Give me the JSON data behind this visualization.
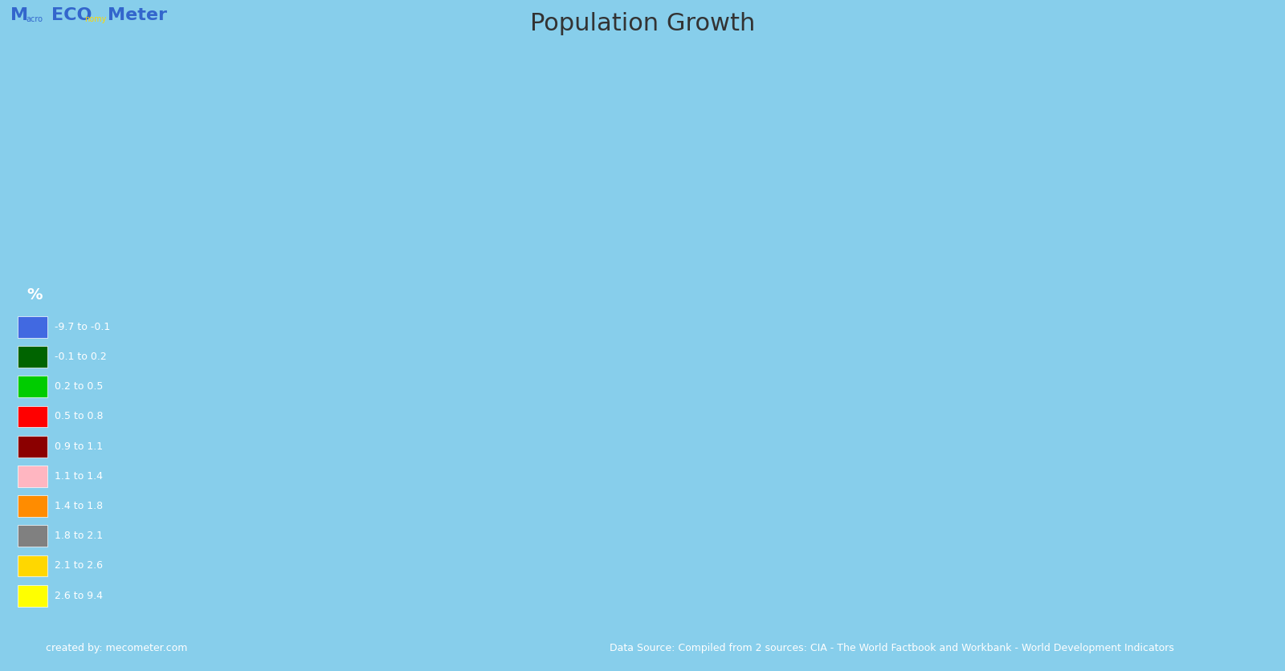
{
  "title": "Population Growth",
  "title_fontsize": 22,
  "title_color": "#333333",
  "background_color": "#87CEEB",
  "legend_bg_color": "#3A82C4",
  "footer_bg_color": "#3A82C4",
  "footer_left": "created by: mecometer.com",
  "footer_right": "Data Source: Compiled from 2 sources: CIA - The World Factbook and Workbank - World Development Indicators",
  "percent_label": "%",
  "legend_entries": [
    {
      "range": "-9.7 to -0.1",
      "color": "#4169E1"
    },
    {
      "range": "-0.1 to 0.2",
      "color": "#006400"
    },
    {
      "range": "0.2 to 0.5",
      "color": "#00CC00"
    },
    {
      "range": "0.5 to 0.8",
      "color": "#FF0000"
    },
    {
      "range": "0.9 to 1.1",
      "color": "#8B0000"
    },
    {
      "range": "1.1 to 1.4",
      "color": "#FFB6C1"
    },
    {
      "range": "1.4 to 1.8",
      "color": "#FF8C00"
    },
    {
      "range": "1.8 to 2.1",
      "color": "#808080"
    },
    {
      "range": "2.1 to 2.6",
      "color": "#FFD700"
    },
    {
      "range": "2.6 to 9.4",
      "color": "#FFFF00"
    }
  ],
  "name_to_color": {
    "United States of America": "#FF0000",
    "Canada": "#FF0000",
    "Mexico": "#FF0000",
    "Guatemala": "#FFD700",
    "Belize": "#FF8C00",
    "Honduras": "#FFD700",
    "El Salvador": "#FFD700",
    "Nicaragua": "#FFD700",
    "Costa Rica": "#FF8C00",
    "Panama": "#FF8C00",
    "Cuba": "#FF0000",
    "Jamaica": "#FF8C00",
    "Haiti": "#FFFF00",
    "Dominican Rep.": "#FFD700",
    "Dominican Republic": "#FFD700",
    "Puerto Rico": "#4169E1",
    "Trinidad and Tobago": "#FF8C00",
    "Colombia": "#FF8C00",
    "Venezuela": "#FF8C00",
    "Guyana": "#FF8C00",
    "Suriname": "#FF8C00",
    "Ecuador": "#FF8C00",
    "Peru": "#FF8C00",
    "Bolivia": "#FF8C00",
    "Brazil": "#FF0000",
    "Paraguay": "#FF8C00",
    "Uruguay": "#FF0000",
    "Argentina": "#FF0000",
    "Chile": "#FF0000",
    "Falkland Is.": "#FF0000",
    "Greenland": "#006400",
    "Iceland": "#00CC00",
    "Norway": "#006400",
    "Sweden": "#00CC00",
    "Finland": "#00CC00",
    "Denmark": "#006400",
    "Estonia": "#4169E1",
    "Latvia": "#4169E1",
    "Lithuania": "#4169E1",
    "Belarus": "#4169E1",
    "Poland": "#4169E1",
    "Germany": "#4169E1",
    "Netherlands": "#00CC00",
    "Belgium": "#00CC00",
    "Luxembourg": "#00CC00",
    "United Kingdom": "#00CC00",
    "Ireland": "#00CC00",
    "France": "#00CC00",
    "Spain": "#4169E1",
    "Portugal": "#4169E1",
    "Switzerland": "#00CC00",
    "Austria": "#00CC00",
    "Czech Rep.": "#4169E1",
    "Czechia": "#4169E1",
    "Slovakia": "#00CC00",
    "Hungary": "#4169E1",
    "Romania": "#4169E1",
    "Bulgaria": "#4169E1",
    "Serbia": "#4169E1",
    "Croatia": "#4169E1",
    "Bosnia and Herz.": "#4169E1",
    "Slovenia": "#00CC00",
    "Albania": "#00CC00",
    "Macedonia": "#00CC00",
    "N. Macedonia": "#00CC00",
    "Greece": "#4169E1",
    "Italy": "#4169E1",
    "Moldova": "#4169E1",
    "Ukraine": "#4169E1",
    "Russia": "#006400",
    "Kazakhstan": "#FF8C00",
    "Georgia": "#4169E1",
    "Armenia": "#4169E1",
    "Azerbaijan": "#FF8C00",
    "Turkey": "#FF8C00",
    "Cyprus": "#00CC00",
    "Syria": "#FFD700",
    "Lebanon": "#00CC00",
    "Israel": "#FF8C00",
    "Jordan": "#FFD700",
    "Saudi Arabia": "#FFD700",
    "Yemen": "#FFFF00",
    "Oman": "#FFD700",
    "United Arab Emirates": "#FFD700",
    "Qatar": "#FFD700",
    "Bahrain": "#FFD700",
    "Kuwait": "#FFD700",
    "Iraq": "#FFD700",
    "Iran": "#FF8C00",
    "Afghanistan": "#FFFF00",
    "Pakistan": "#FFFF00",
    "India": "#FF8C00",
    "Nepal": "#FF8C00",
    "Bhutan": "#FF8C00",
    "Bangladesh": "#FF8C00",
    "Sri Lanka": "#FF0000",
    "Myanmar": "#FF8C00",
    "Thailand": "#00CC00",
    "Laos": "#FFD700",
    "Lao PDR": "#FFD700",
    "Vietnam": "#FF0000",
    "Viet Nam": "#FF0000",
    "Cambodia": "#FF8C00",
    "Malaysia": "#FF8C00",
    "Singapore": "#00CC00",
    "Indonesia": "#FF8C00",
    "Philippines": "#FFD700",
    "China": "#00CC00",
    "Mongolia": "#FF8C00",
    "N. Korea": "#8B0000",
    "S. Korea": "#00CC00",
    "Japan": "#4169E1",
    "Taiwan": "#4169E1",
    "Uzbekistan": "#FF8C00",
    "Turkmenistan": "#FF8C00",
    "Kyrgyzstan": "#FF8C00",
    "Tajikistan": "#FFD700",
    "Morocco": "#FF8C00",
    "Algeria": "#FF8C00",
    "Tunisia": "#FF0000",
    "Libya": "#FF8C00",
    "Egypt": "#FFD700",
    "Sudan": "#FFFF00",
    "S. Sudan": "#FFFF00",
    "Ethiopia": "#FFFF00",
    "Eritrea": "#FFFF00",
    "Djibouti": "#FFFF00",
    "Somalia": "#FFFF00",
    "Kenya": "#FFFF00",
    "Uganda": "#FFFF00",
    "Tanzania": "#FFFF00",
    "Rwanda": "#FFFF00",
    "Burundi": "#FFFF00",
    "Dem. Rep. Congo": "#808080",
    "Congo": "#808080",
    "Central African Rep.": "#808080",
    "Chad": "#808080",
    "Niger": "#FFFF00",
    "Mali": "#FFFF00",
    "Mauritania": "#FFD700",
    "Senegal": "#FFD700",
    "Gambia": "#FFFF00",
    "Guinea-Bissau": "#FFFF00",
    "Guinea": "#FFFF00",
    "Sierra Leone": "#FFFF00",
    "Liberia": "#FFD700",
    "Ivory Coast": "#FFD700",
    "Côte d'Ivoire": "#FFD700",
    "Ghana": "#FFD700",
    "Burkina Faso": "#FFFF00",
    "Togo": "#FFD700",
    "Benin": "#FFD700",
    "Nigeria": "#FFFF00",
    "Cameroon": "#FFD700",
    "Eq. Guinea": "#FFD700",
    "Gabon": "#FF8C00",
    "Angola": "#FFFF00",
    "Zambia": "#FFFF00",
    "Zimbabwe": "#4169E1",
    "Malawi": "#FFFF00",
    "Mozambique": "#FFFF00",
    "Madagascar": "#FFD700",
    "Namibia": "#FF8C00",
    "Botswana": "#8B0000",
    "South Africa": "#FF0000",
    "Lesotho": "#8B0000",
    "Swaziland": "#FFD700",
    "eSwatini": "#FFD700",
    "Australia": "#FFB6C1",
    "New Zealand": "#00CC00",
    "Papua New Guinea": "#FFD700",
    "Fiji": "#FFD700",
    "W. Sahara": "#808080",
    "Kosovo": "#00CC00",
    "Montenegro": "#00CC00",
    "Antarctica": "#CCCCCC",
    "Fr. S. Antarctic Lands": "#CCCCCC"
  }
}
